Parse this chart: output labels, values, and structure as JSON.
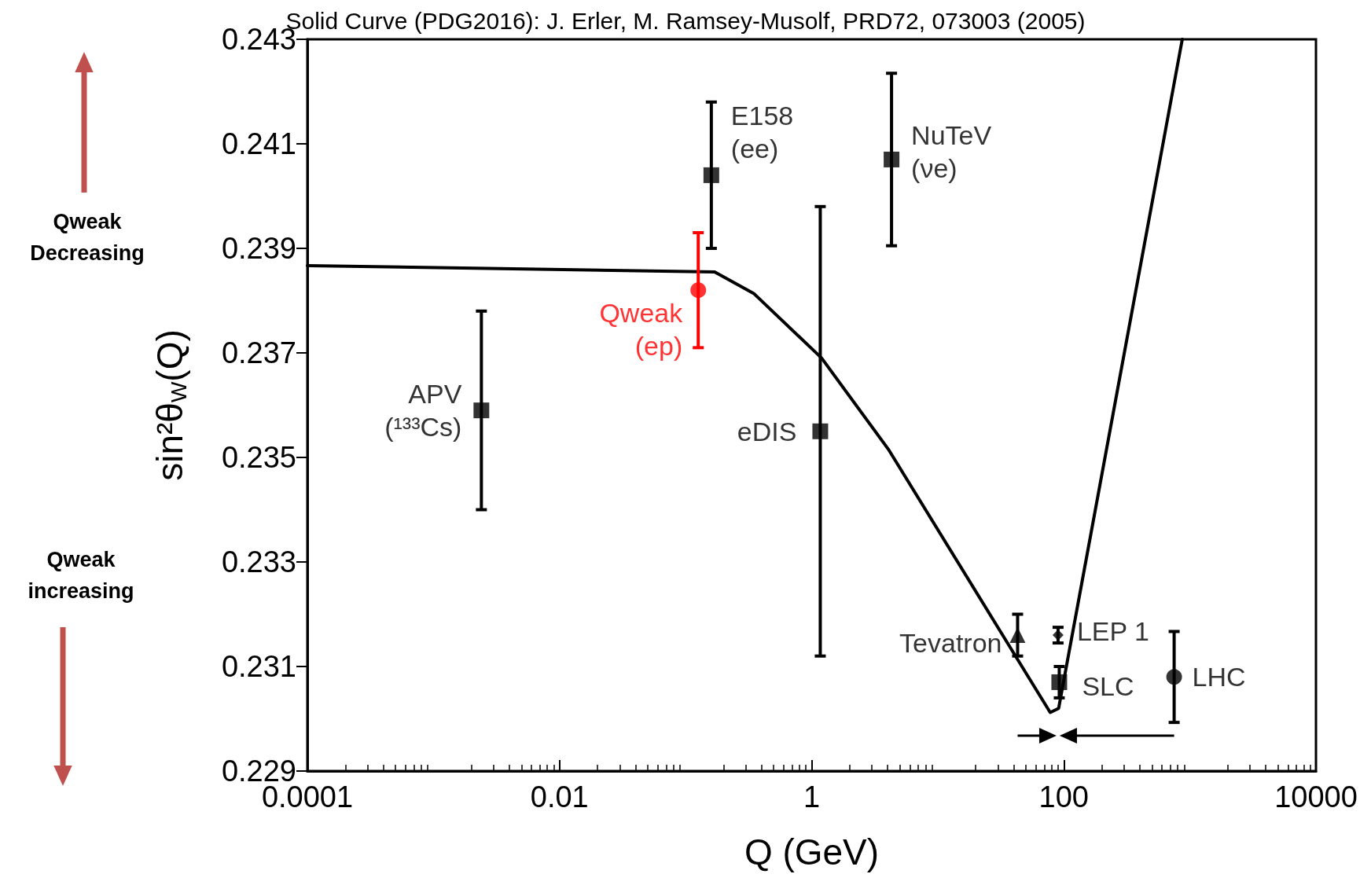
{
  "chart_data": {
    "type": "scatter",
    "title": "Solid Curve (PDG2016): J. Erler, M. Ramsey-Musolf, PRD72, 073003 (2005)",
    "xlabel": "Q (GeV)",
    "ylabel": "sin²θ$_{W}$(Q)",
    "log": "x",
    "xlim": [
      0.0001,
      10000
    ],
    "xticks": [
      0.0001,
      0.01,
      1,
      100,
      10000
    ],
    "ylim": [
      0.229,
      0.243
    ],
    "yticks": [
      0.229,
      0.231,
      0.233,
      0.235,
      0.237,
      0.239,
      0.241,
      0.243
    ],
    "grid": false,
    "legend": false,
    "annotations": [
      "Qweak\nDecreasing",
      "Qweak\nincreasing"
    ],
    "series": [
      {
        "type": "line",
        "marker": "none",
        "color": "#000000",
        "x": [
          0.0001,
          0.17,
          0.35,
          1.2,
          4.1,
          78,
          91,
          870
        ],
        "values": [
          0.23867,
          0.23855,
          0.23813,
          0.2369,
          0.23514,
          0.23012,
          0.2302,
          0.243
        ]
      },
      {
        "name": "APV\n(¹³³Cs)",
        "marker": "square",
        "color": "#000000",
        "x": [
          0.0024
        ],
        "values": [
          0.2359
        ],
        "errors": [
          0.0019
        ]
      },
      {
        "name": "Qweak\n(ep)",
        "marker": "circle",
        "color": "#ff0000",
        "x": [
          0.126
        ],
        "values": [
          0.2382
        ],
        "errors": [
          0.0011
        ]
      },
      {
        "name": "E158\n(ee)",
        "marker": "square",
        "color": "#000000",
        "x": [
          0.16
        ],
        "values": [
          0.2404
        ],
        "errors": [
          0.0014
        ]
      },
      {
        "name": "eDIS",
        "marker": "square",
        "color": "#000000",
        "x": [
          1.17
        ],
        "values": [
          0.2355
        ],
        "errors": [
          0.0043
        ]
      },
      {
        "name": "NuTeV\n(νe)",
        "marker": "square",
        "color": "#000000",
        "x": [
          4.3
        ],
        "values": [
          0.2407
        ],
        "errors": [
          0.00165
        ]
      },
      {
        "name": "Tevatron",
        "marker": "triangle",
        "color": "#000000",
        "x": [
          43
        ],
        "values": [
          0.2316
        ],
        "errors": [
          0.0004
        ]
      },
      {
        "name": "LEP 1",
        "marker": "diamond",
        "color": "#000000",
        "x": [
          90
        ],
        "values": [
          0.2316
        ],
        "errors": [
          0.00015
        ]
      },
      {
        "name": "SLC",
        "marker": "square",
        "color": "#000000",
        "x": [
          92
        ],
        "values": [
          0.2307
        ],
        "errors": [
          0.0003
        ]
      },
      {
        "name": "LHC",
        "marker": "circle",
        "color": "#000000",
        "x": [
          750
        ],
        "values": [
          0.2308
        ],
        "errors": [
          0.00087
        ]
      }
    ]
  }
}
